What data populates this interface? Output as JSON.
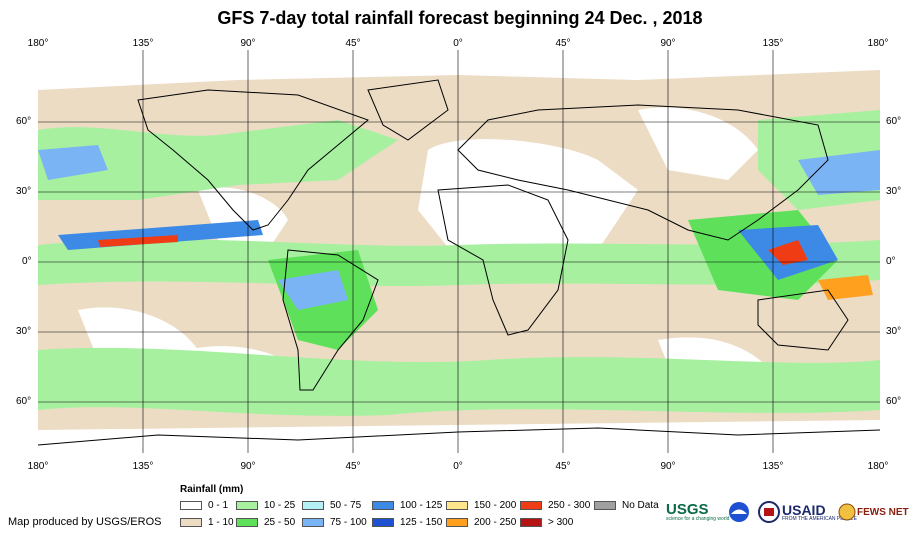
{
  "title": "GFS 7-day total rainfall forecast beginning 24 Dec. , 2018",
  "lon_labels": [
    "180°",
    "135°",
    "90°",
    "45°",
    "0°",
    "45°",
    "90°",
    "135°",
    "180°"
  ],
  "lat_labels": [
    "60°",
    "30°",
    "0°",
    "30°",
    "60°"
  ],
  "legend": {
    "title": "Rainfall (mm)",
    "items": [
      {
        "label": "0 - 1",
        "color": "#ffffff"
      },
      {
        "label": "1 - 10",
        "color": "#ecdcc4"
      },
      {
        "label": "10 - 25",
        "color": "#a6f0a0"
      },
      {
        "label": "25 - 50",
        "color": "#5ee05a"
      },
      {
        "label": "50 - 75",
        "color": "#b4f0f5"
      },
      {
        "label": "75 - 100",
        "color": "#7ab4f5"
      },
      {
        "label": "100 - 125",
        "color": "#3c8ae6"
      },
      {
        "label": "125 - 150",
        "color": "#1e50d2"
      },
      {
        "label": "150 - 200",
        "color": "#ffe68c"
      },
      {
        "label": "200 - 250",
        "color": "#ffa01e"
      },
      {
        "label": "250 - 300",
        "color": "#f03c14"
      },
      {
        "label": "> 300",
        "color": "#b41414"
      },
      {
        "label": "No Data",
        "color": "#a0a0a0"
      }
    ]
  },
  "credit": "Map produced by USGS/EROS",
  "logos": {
    "usgs": "USGS",
    "usgs_tagline": "science for a changing world",
    "usaid": "USAID",
    "usaid_tagline": "FROM THE AMERICAN PEOPLE",
    "fews": "FEWS NET"
  }
}
